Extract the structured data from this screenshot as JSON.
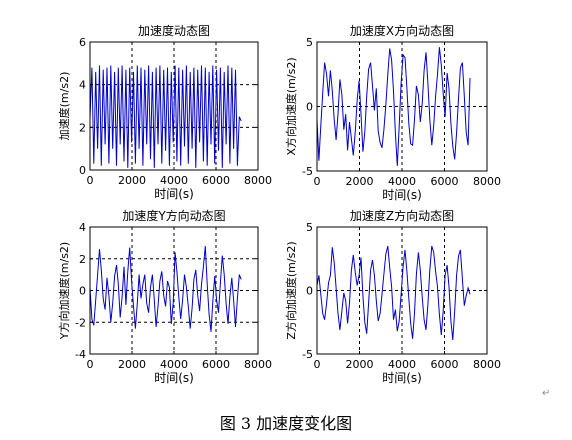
{
  "caption": "图 3  加速度变化图",
  "return_mark": "↵",
  "chart_data": [
    {
      "type": "line",
      "title": "加速度动态图",
      "xlabel": "时间(s)",
      "ylabel": "加速度(m/s2)",
      "xlim": [
        0,
        8000
      ],
      "ylim": [
        0,
        6
      ],
      "xticks": [
        0,
        2000,
        4000,
        6000,
        8000
      ],
      "yticks": [
        0,
        2,
        4,
        6
      ],
      "grid": true,
      "color": "#0000cc",
      "series": [
        {
          "x": [
            0,
            90,
            180,
            270,
            360,
            450,
            540,
            630,
            720,
            810,
            900,
            990,
            1080,
            1170,
            1260,
            1350,
            1440,
            1530,
            1620,
            1710,
            1800,
            1890,
            1980,
            2070,
            2160,
            2250,
            2340,
            2430,
            2520,
            2610,
            2700,
            2790,
            2880,
            2970,
            3060,
            3150,
            3240,
            3330,
            3420,
            3510,
            3600,
            3690,
            3780,
            3870,
            3960,
            4050,
            4140,
            4230,
            4320,
            4410,
            4500,
            4590,
            4680,
            4770,
            4860,
            4950,
            5040,
            5130,
            5220,
            5310,
            5400,
            5490,
            5580,
            5670,
            5760,
            5850,
            5940,
            6030,
            6120,
            6210,
            6300,
            6390,
            6480,
            6570,
            6660,
            6750,
            6840,
            6930,
            7020,
            7110,
            7200
          ],
          "y": [
            2.4,
            4.8,
            0.3,
            4.6,
            1.0,
            4.9,
            0.2,
            4.7,
            1.2,
            4.8,
            0.3,
            4.9,
            1.0,
            4.6,
            0.2,
            4.8,
            1.2,
            4.9,
            0.4,
            4.7,
            0.1,
            4.8,
            1.3,
            4.6,
            0.3,
            4.9,
            1.0,
            4.8,
            0.2,
            4.7,
            1.2,
            4.9,
            0.5,
            4.6,
            0.1,
            4.8,
            1.2,
            4.9,
            0.3,
            4.7,
            0.9,
            4.8,
            0.2,
            4.6,
            1.3,
            4.9,
            0.4,
            4.8,
            0.2,
            4.7,
            1.1,
            4.9,
            0.3,
            4.6,
            1.0,
            4.8,
            0.1,
            4.7,
            1.3,
            4.9,
            0.4,
            4.8,
            0.2,
            4.6,
            1.2,
            4.9,
            0.3,
            4.7,
            0.9,
            4.8,
            0.1,
            4.6,
            1.2,
            4.9,
            0.3,
            4.8,
            1.0,
            4.7,
            0.2,
            2.5,
            2.3
          ]
        }
      ]
    },
    {
      "type": "line",
      "title": "加速度X方向动态图",
      "xlabel": "时间(s)",
      "ylabel": "X方向加速度(m/s2)",
      "xlim": [
        0,
        8000
      ],
      "ylim": [
        -5,
        5
      ],
      "xticks": [
        0,
        2000,
        4000,
        6000,
        8000
      ],
      "yticks": [
        -5,
        0,
        5
      ],
      "grid": true,
      "color": "#0000cc",
      "series": [
        {
          "x": [
            0,
            90,
            180,
            270,
            360,
            450,
            540,
            630,
            720,
            810,
            900,
            990,
            1080,
            1170,
            1260,
            1350,
            1440,
            1530,
            1620,
            1710,
            1800,
            1890,
            1980,
            2070,
            2160,
            2250,
            2340,
            2430,
            2520,
            2610,
            2700,
            2790,
            2880,
            2970,
            3060,
            3150,
            3240,
            3330,
            3420,
            3510,
            3600,
            3690,
            3780,
            3870,
            3960,
            4050,
            4140,
            4230,
            4320,
            4410,
            4500,
            4590,
            4680,
            4770,
            4860,
            4950,
            5040,
            5130,
            5220,
            5310,
            5400,
            5490,
            5580,
            5670,
            5760,
            5850,
            5940,
            6030,
            6120,
            6210,
            6300,
            6390,
            6480,
            6570,
            6660,
            6750,
            6840,
            6930,
            7020,
            7110,
            7200
          ],
          "y": [
            -1.0,
            -4.2,
            -1.5,
            1.0,
            3.4,
            2.5,
            0.8,
            2.8,
            1.2,
            -1.0,
            -2.6,
            -0.6,
            2.1,
            0.9,
            -1.8,
            -0.6,
            -3.4,
            -1.2,
            -2.5,
            -3.8,
            -1.9,
            0.5,
            2.0,
            -0.6,
            -3.5,
            -2.0,
            0.8,
            2.9,
            3.4,
            1.6,
            -0.3,
            1.4,
            -1.9,
            -2.8,
            -3.2,
            -1.8,
            0.2,
            2.5,
            4.5,
            3.6,
            1.2,
            -2.1,
            -4.6,
            -1.5,
            1.8,
            4.0,
            3.8,
            1.4,
            -1.3,
            -2.9,
            -3.0,
            -1.0,
            1.6,
            0.9,
            -1.2,
            0.2,
            2.8,
            4.2,
            1.8,
            -1.0,
            -3.0,
            -1.5,
            0.8,
            2.5,
            4.6,
            3.2,
            1.0,
            -0.8,
            2.6,
            1.4,
            -1.3,
            -3.1,
            -4.1,
            -2.0,
            0.6,
            3.0,
            3.4,
            0.8,
            -2.0,
            -3.0,
            2.2
          ]
        }
      ]
    },
    {
      "type": "line",
      "title": "加速度Y方向动态图",
      "xlabel": "时间(s)",
      "ylabel": "Y方向加速度(m/s2)",
      "xlim": [
        0,
        8000
      ],
      "ylim": [
        -4,
        4
      ],
      "xticks": [
        0,
        2000,
        4000,
        6000,
        8000
      ],
      "yticks": [
        -4,
        -2,
        0,
        2,
        4
      ],
      "grid": true,
      "color": "#0000cc",
      "series": [
        {
          "x": [
            0,
            90,
            180,
            270,
            360,
            450,
            540,
            630,
            720,
            810,
            900,
            990,
            1080,
            1170,
            1260,
            1350,
            1440,
            1530,
            1620,
            1710,
            1800,
            1890,
            1980,
            2070,
            2160,
            2250,
            2340,
            2430,
            2520,
            2610,
            2700,
            2790,
            2880,
            2970,
            3060,
            3150,
            3240,
            3330,
            3420,
            3510,
            3600,
            3690,
            3780,
            3870,
            3960,
            4050,
            4140,
            4230,
            4320,
            4410,
            4500,
            4590,
            4680,
            4770,
            4860,
            4950,
            5040,
            5130,
            5220,
            5310,
            5400,
            5490,
            5580,
            5670,
            5760,
            5850,
            5940,
            6030,
            6120,
            6210,
            6300,
            6390,
            6480,
            6570,
            6660,
            6750,
            6840,
            6930,
            7020,
            7110,
            7200
          ],
          "y": [
            0.2,
            -1.8,
            -2.2,
            -0.6,
            1.0,
            2.6,
            1.3,
            -0.5,
            -1.2,
            0.8,
            -0.3,
            -2.0,
            -0.8,
            0.9,
            1.6,
            0.4,
            -1.7,
            -0.4,
            1.5,
            -0.9,
            1.2,
            2.7,
            0.6,
            -1.0,
            -2.4,
            -0.8,
            1.0,
            -0.5,
            0.4,
            1.0,
            -0.8,
            -1.4,
            0.2,
            1.0,
            -0.6,
            -2.3,
            -1.0,
            0.6,
            1.2,
            -0.3,
            -1.0,
            0.6,
            0.2,
            -2.1,
            -0.8,
            2.4,
            1.2,
            -0.4,
            -1.8,
            -0.6,
            1.0,
            0.2,
            -1.0,
            -2.4,
            -1.1,
            0.7,
            1.3,
            -0.3,
            -1.3,
            0.4,
            1.5,
            2.8,
            0.4,
            -1.5,
            -2.6,
            -0.7,
            0.9,
            -0.6,
            -1.4,
            0.5,
            2.2,
            1.0,
            -0.8,
            -2.1,
            -0.4,
            0.8,
            -0.6,
            -2.3,
            -0.5,
            1.0,
            0.7
          ]
        }
      ]
    },
    {
      "type": "line",
      "title": "加速度Z方向动态图",
      "xlabel": "时间(s)",
      "ylabel": "Z方向加速度(m/s2)",
      "xlim": [
        0,
        8000
      ],
      "ylim": [
        -5,
        5
      ],
      "xticks": [
        0,
        2000,
        4000,
        6000,
        8000
      ],
      "yticks": [
        -5,
        0,
        5
      ],
      "grid": true,
      "color": "#0000cc",
      "series": [
        {
          "x": [
            0,
            90,
            180,
            270,
            360,
            450,
            540,
            630,
            720,
            810,
            900,
            990,
            1080,
            1170,
            1260,
            1350,
            1440,
            1530,
            1620,
            1710,
            1800,
            1890,
            1980,
            2070,
            2160,
            2250,
            2340,
            2430,
            2520,
            2610,
            2700,
            2790,
            2880,
            2970,
            3060,
            3150,
            3240,
            3330,
            3420,
            3510,
            3600,
            3690,
            3780,
            3870,
            3960,
            4050,
            4140,
            4230,
            4320,
            4410,
            4500,
            4590,
            4680,
            4770,
            4860,
            4950,
            5040,
            5130,
            5220,
            5310,
            5400,
            5490,
            5580,
            5670,
            5760,
            5850,
            5940,
            6030,
            6120,
            6210,
            6300,
            6390,
            6480,
            6570,
            6660,
            6750,
            6840,
            6930,
            7020,
            7110,
            7200
          ],
          "y": [
            0.4,
            1.2,
            -0.3,
            -1.8,
            -2.3,
            -1.0,
            0.6,
            1.2,
            3.4,
            2.2,
            0.2,
            -1.8,
            -3.1,
            -1.6,
            -0.2,
            -0.8,
            -2.6,
            -1.0,
            1.6,
            2.8,
            1.4,
            0.4,
            1.2,
            2.6,
            -0.4,
            -2.5,
            -3.4,
            -1.0,
            1.6,
            2.4,
            1.2,
            -0.8,
            -2.4,
            -1.8,
            -0.3,
            1.3,
            2.9,
            3.5,
            1.8,
            0.3,
            -2.3,
            -1.5,
            -3.2,
            -2.4,
            -0.3,
            1.9,
            3.2,
            1.5,
            -0.6,
            -2.6,
            -3.8,
            -1.8,
            1.3,
            3.0,
            1.6,
            -0.5,
            -2.3,
            -3.1,
            -1.1,
            1.6,
            3.5,
            3.0,
            1.5,
            0.3,
            -1.9,
            -3.5,
            -1.6,
            1.2,
            2.0,
            0.3,
            -2.4,
            -3.9,
            -1.6,
            1.2,
            2.7,
            3.2,
            0.9,
            -1.2,
            -0.4,
            0.2,
            -0.3
          ]
        }
      ]
    }
  ]
}
